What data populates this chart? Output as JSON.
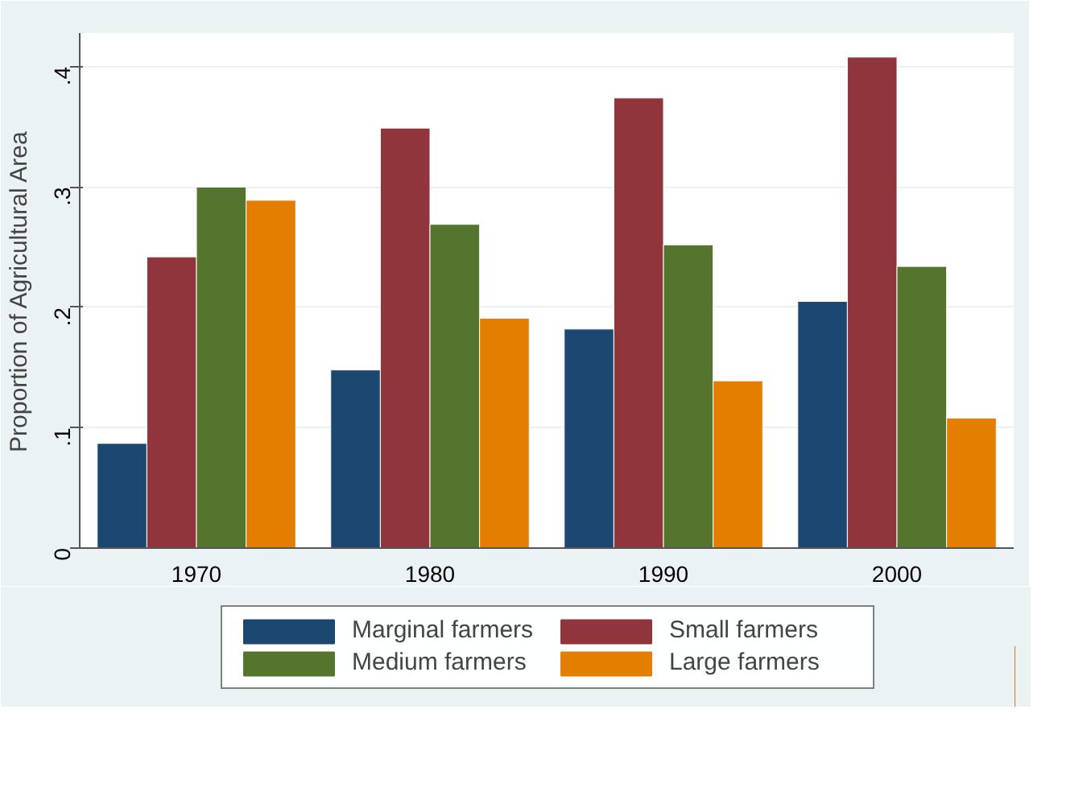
{
  "chart_data": {
    "type": "bar",
    "ylabel": "Proportion of Agricultural Area",
    "categories": [
      "1970",
      "1980",
      "1990",
      "2000"
    ],
    "series": [
      {
        "name": "Marginal farmers",
        "color": "#1c4770",
        "values": [
          0.087,
          0.148,
          0.182,
          0.205
        ]
      },
      {
        "name": "Small farmers",
        "color": "#90353b",
        "values": [
          0.242,
          0.349,
          0.374,
          0.408
        ]
      },
      {
        "name": "Medium farmers",
        "color": "#55752f",
        "values": [
          0.3,
          0.269,
          0.252,
          0.234
        ]
      },
      {
        "name": "Large farmers",
        "color": "#e37e00",
        "values": [
          0.289,
          0.191,
          0.139,
          0.108
        ]
      }
    ],
    "ylim": [
      0,
      0.428
    ],
    "yticks": [
      {
        "value": 0,
        "label": "0"
      },
      {
        "value": 0.1,
        "label": ".1"
      },
      {
        "value": 0.2,
        "label": ".2"
      },
      {
        "value": 0.3,
        "label": ".3"
      },
      {
        "value": 0.4,
        "label": ".4"
      }
    ],
    "grid": "y",
    "legend": "bottom"
  }
}
